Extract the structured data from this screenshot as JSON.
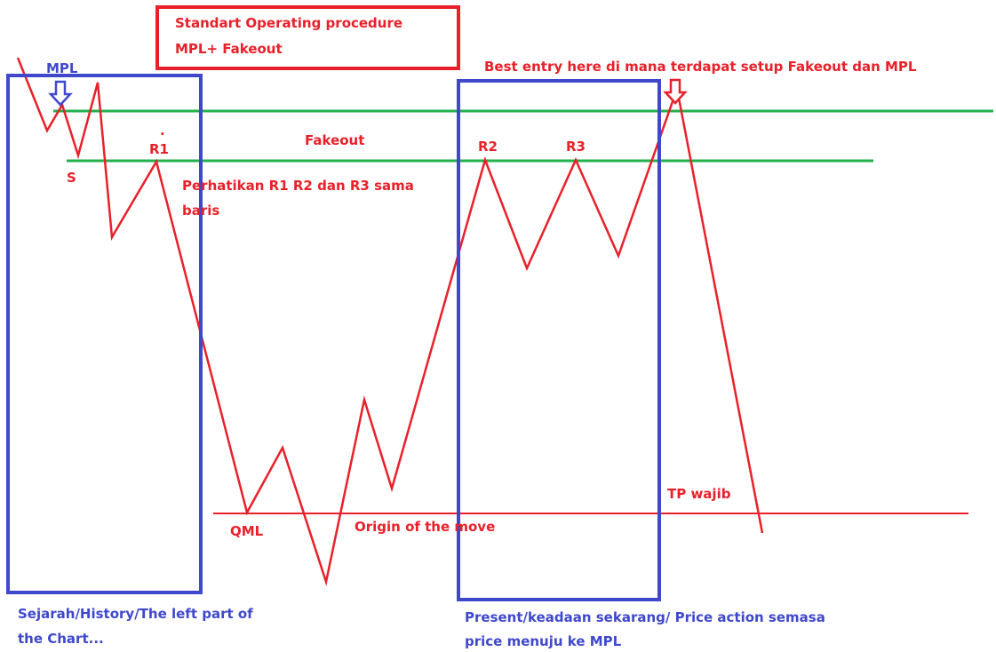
{
  "title": {
    "lines": [
      "Standart Operating procedure",
      "MPL+ Fakeout"
    ]
  },
  "labels": {
    "mpl": "MPL",
    "best_entry": "Best entry here di mana terdapat setup Fakeout dan MPL",
    "dot": ".",
    "r1": "R1",
    "r2": "R2",
    "r3": "R3",
    "s": "S",
    "fakeout": "Fakeout",
    "note": [
      "Perhatikan R1 R2 dan R3 sama",
      "baris"
    ],
    "qml": "QML",
    "origin": "Origin of the move",
    "tp": "TP wajib"
  },
  "captions": {
    "history": [
      "Sejarah/History/The left part of",
      "the Chart..."
    ],
    "present": [
      "Present/keadaan sekarang/ Price action semasa",
      "price menuju ke MPL"
    ]
  }
}
